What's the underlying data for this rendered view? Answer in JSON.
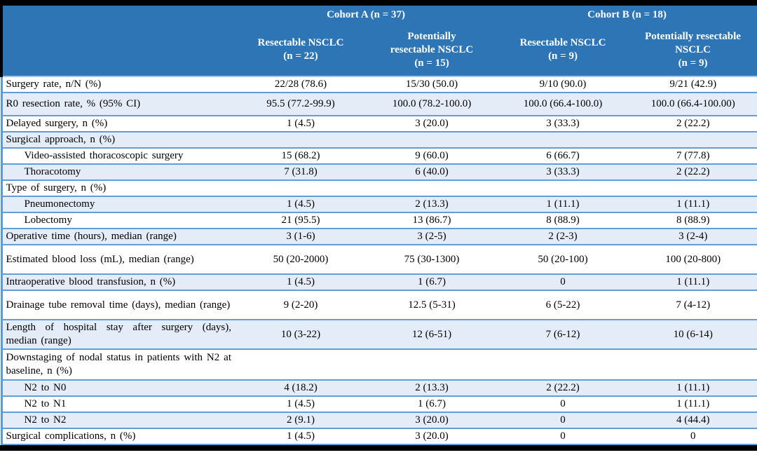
{
  "table": {
    "header": {
      "cohort_a": "Cohort A (n = 37)",
      "cohort_b": "Cohort B (n = 18)",
      "columns": [
        {
          "name": "Resectable NSCLC",
          "n": "(n = 22)"
        },
        {
          "name": "Potentially resectable NSCLC",
          "n": "(n = 15)"
        },
        {
          "name": "Resectable NSCLC",
          "n": "(n = 9)"
        },
        {
          "name": "Potentially resectable NSCLC",
          "n": "(n = 9)"
        }
      ]
    },
    "rows": [
      {
        "label": "Surgery rate, n/N (%)",
        "values": [
          "22/28 (78.6)",
          "15/30 (50.0)",
          "9/10 (90.0)",
          "9/21 (42.9)"
        ]
      },
      {
        "label": "R0 resection rate, % (95% CI)",
        "values": [
          "95.5 (77.2-99.9)",
          "100.0 (78.2-100.0)",
          "100.0 (66.4-100.0)",
          "100.0 (66.4-100.00)"
        ]
      },
      {
        "label": "Delayed surgery, n (%)",
        "values": [
          "1 (4.5)",
          "3 (20.0)",
          "3 (33.3)",
          "2 (22.2)"
        ]
      },
      {
        "label": "Surgical approach, n (%)",
        "values": [
          "",
          "",
          "",
          ""
        ]
      },
      {
        "label": "Video-assisted thoracoscopic surgery",
        "values": [
          "15 (68.2)",
          "9 (60.0)",
          "6 (66.7)",
          "7 (77.8)"
        ]
      },
      {
        "label": "Thoracotomy",
        "values": [
          "7 (31.8)",
          "6 (40.0)",
          "3 (33.3)",
          "2 (22.2)"
        ]
      },
      {
        "label": "Type of surgery, n (%)",
        "values": [
          "",
          "",
          "",
          ""
        ]
      },
      {
        "label": "Pneumonectomy",
        "values": [
          "1 (4.5)",
          "2 (13.3)",
          "1 (11.1)",
          "1 (11.1)"
        ]
      },
      {
        "label": "Lobectomy",
        "values": [
          "21 (95.5)",
          "13 (86.7)",
          "8 (88.9)",
          "8 (88.9)"
        ]
      },
      {
        "label": "Operative time (hours), median (range)",
        "values": [
          "3 (1-6)",
          "3 (2-5)",
          "2 (2-3)",
          "3 (2-4)"
        ]
      },
      {
        "label": "Estimated blood loss (mL), median (range)",
        "values": [
          "50 (20-2000)",
          "75 (30-1300)",
          "50 (20-100)",
          "100 (20-800)"
        ]
      },
      {
        "label": "Intraoperative blood transfusion, n (%)",
        "values": [
          "1 (4.5)",
          "1 (6.7)",
          "0",
          "1 (11.1)"
        ]
      },
      {
        "label": "Drainage tube removal time (days), median (range)",
        "values": [
          "9 (2-20)",
          "12.5 (5-31)",
          "6 (5-22)",
          "7 (4-12)"
        ]
      },
      {
        "label": "Length of hospital stay after surgery (days), median (range)",
        "values": [
          "10 (3-22)",
          "12 (6-51)",
          "7 (6-12)",
          "10 (6-14)"
        ]
      },
      {
        "label": "Downstaging of nodal status in patients with N2 at baseline, n (%)",
        "values": [
          "",
          "",
          "",
          ""
        ]
      },
      {
        "label": "N2 to N0",
        "values": [
          "4 (18.2)",
          "2 (13.3)",
          "2 (22.2)",
          "1 (11.1)"
        ]
      },
      {
        "label": "N2 to N1",
        "values": [
          "1 (4.5)",
          "1 (6.7)",
          "0",
          "1 (11.1)"
        ]
      },
      {
        "label": "N2 to N2",
        "values": [
          "2 (9.1)",
          "3 (20.0)",
          "0",
          "4 (44.4)"
        ]
      },
      {
        "label": "Surgical complications, n (%)",
        "values": [
          "1 (4.5)",
          "3 (20.0)",
          "0",
          "0"
        ]
      }
    ],
    "colors": {
      "header_background": "#2e75b6",
      "band_row_background": "#e3ecf7",
      "row_border": "#5b9bd5",
      "frame_bar": "#000000",
      "header_text": "#ffffff",
      "body_text": "#000000"
    }
  }
}
